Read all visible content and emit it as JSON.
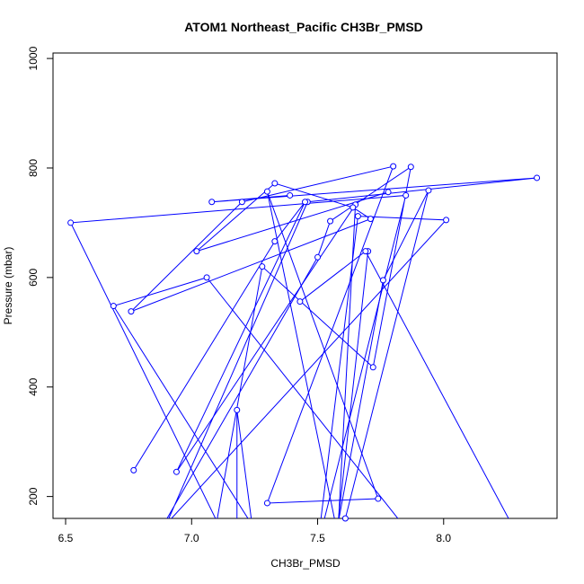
{
  "chart_data": {
    "type": "line",
    "title": "ATOM1 Northeast_Pacific CH3Br_PMSD",
    "xlabel": "CH3Br_PMSD",
    "ylabel": "Pressure (mbar)",
    "xlim": [
      6.45,
      8.45
    ],
    "ylim": [
      1010,
      160
    ],
    "y_inverted": true,
    "xticks": [
      6.5,
      7.0,
      7.5,
      8.0
    ],
    "xtick_labels": [
      "6.5",
      "7.0",
      "7.5",
      "8.0"
    ],
    "yticks": [
      200,
      400,
      600,
      800,
      1000
    ],
    "ytick_labels": [
      "200",
      "400",
      "600",
      "800",
      "1000"
    ],
    "grid": false,
    "legend": "none",
    "color": "#0000ff",
    "series": [
      {
        "x": [
          7.87,
          7.06,
          6.69,
          7.24,
          7.18,
          7.18,
          6.89,
          7.5,
          7.55,
          7.87,
          7.72,
          7.28,
          7.1,
          6.52,
          7.85,
          7.5,
          7.66,
          8.01,
          6.9,
          7.46,
          8.37,
          7.08,
          7.39
        ],
        "y": [
          130,
          600,
          548,
          148,
          358,
          108,
          150,
          637,
          703,
          802,
          436,
          620,
          155,
          700,
          750,
          110,
          712,
          705,
          150,
          738,
          782,
          738,
          750
        ],
        "markers": true
      },
      {
        "x": [
          6.77,
          7.33,
          7.45,
          6.94,
          7.65,
          7.58,
          7.3,
          7.74,
          7.3,
          7.8,
          7.2,
          6.76,
          7.71,
          7.64,
          7.33,
          7.02,
          7.78
        ],
        "y": [
          248,
          666,
          738,
          245,
          733,
          130,
          757,
          196,
          188,
          803,
          738,
          538,
          707,
          728,
          772,
          648,
          756
        ],
        "markers": true
      },
      {
        "x": [
          7.7,
          7.58,
          7.76,
          7.94,
          7.61,
          8.29,
          7.69,
          7.43
        ],
        "y": [
          648,
          148,
          595,
          759,
          160,
          132,
          648,
          556
        ],
        "markers": true
      }
    ]
  }
}
